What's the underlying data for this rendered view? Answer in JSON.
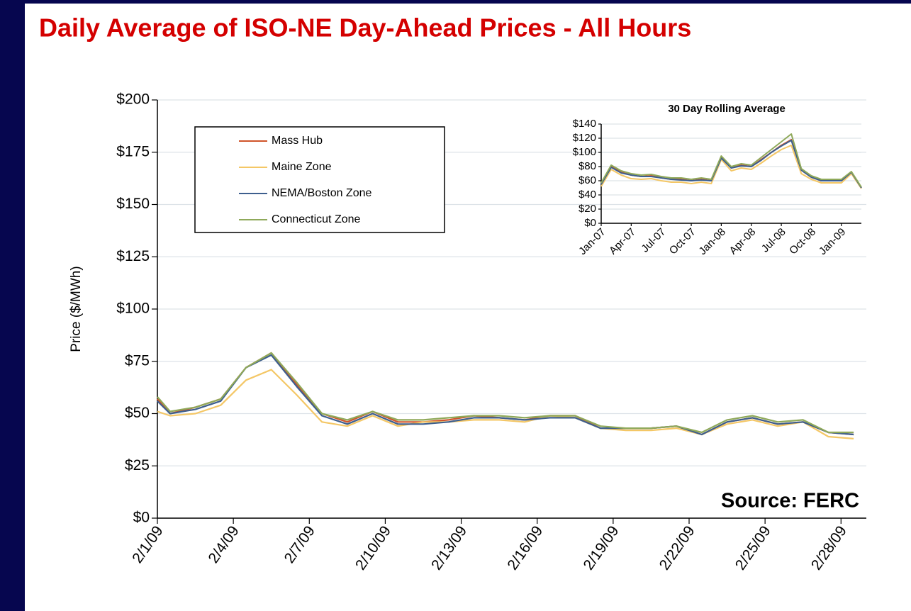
{
  "chart_data": [
    {
      "type": "line",
      "title": "Daily Average of ISO-NE Day-Ahead Prices - All Hours",
      "y_label": "Price ($/MWh)",
      "annotation": "Source: FERC",
      "x": [
        0,
        0.5,
        1.5,
        2.5,
        3.5,
        4.5,
        5.5,
        6.5,
        7.5,
        8.5,
        9.5,
        10.5,
        11.5,
        12.5,
        13.5,
        14.5,
        15.5,
        16.5,
        17.5,
        18.5,
        19.5,
        20.5,
        21.5,
        22.5,
        23.5,
        24.5,
        25.5,
        26.5,
        27.5
      ],
      "xlim": [
        0,
        28
      ],
      "xticks": [
        {
          "value": 0,
          "label": "2/1/09"
        },
        {
          "value": 3,
          "label": "2/4/09"
        },
        {
          "value": 6,
          "label": "2/7/09"
        },
        {
          "value": 9,
          "label": "2/10/09"
        },
        {
          "value": 12,
          "label": "2/13/09"
        },
        {
          "value": 15,
          "label": "2/16/09"
        },
        {
          "value": 18,
          "label": "2/19/09"
        },
        {
          "value": 21,
          "label": "2/22/09"
        },
        {
          "value": 24,
          "label": "2/25/09"
        },
        {
          "value": 27,
          "label": "2/28/09"
        }
      ],
      "ylim": [
        0,
        200
      ],
      "yticks": [
        {
          "value": 0,
          "label": "$0"
        },
        {
          "value": 25,
          "label": "$25"
        },
        {
          "value": 50,
          "label": "$50"
        },
        {
          "value": 75,
          "label": "$75"
        },
        {
          "value": 100,
          "label": "$100"
        },
        {
          "value": 125,
          "label": "$125"
        },
        {
          "value": 150,
          "label": "$150"
        },
        {
          "value": 175,
          "label": "$175"
        },
        {
          "value": 200,
          "label": "$200"
        }
      ],
      "grid": true,
      "legend": "top-left",
      "series": [
        {
          "name": "Mass Hub",
          "color": "#d0542a",
          "values": [
            57,
            50,
            53,
            57,
            72,
            79,
            64,
            50,
            46,
            51,
            46,
            46,
            47,
            49,
            48,
            47,
            49,
            49,
            43,
            43,
            43,
            44,
            40,
            46,
            48,
            45,
            46,
            41,
            40
          ]
        },
        {
          "name": "Maine Zone",
          "color": "#f4c766",
          "values": [
            51,
            49,
            50,
            54,
            66,
            71,
            59,
            46,
            44,
            49,
            44,
            46,
            46,
            47,
            47,
            46,
            49,
            48,
            43,
            42,
            42,
            43,
            40,
            45,
            47,
            44,
            46,
            39,
            38
          ]
        },
        {
          "name": "NEMA/Boston Zone",
          "color": "#3d5f8e",
          "values": [
            56,
            50,
            52,
            56,
            72,
            78,
            63,
            49,
            45,
            50,
            45,
            45,
            46,
            48,
            48,
            47,
            48,
            48,
            43,
            43,
            43,
            44,
            40,
            46,
            48,
            45,
            46,
            41,
            40
          ]
        },
        {
          "name": "Connecticut Zone",
          "color": "#8fa95a",
          "values": [
            58,
            51,
            53,
            57,
            72,
            79,
            65,
            50,
            47,
            51,
            47,
            47,
            48,
            49,
            49,
            48,
            49,
            49,
            44,
            43,
            43,
            44,
            41,
            47,
            49,
            46,
            47,
            41,
            41
          ]
        }
      ]
    },
    {
      "type": "line",
      "title": "30 Day Rolling Average",
      "x": [
        0,
        1,
        2,
        3,
        4,
        5,
        6,
        7,
        8,
        9,
        10,
        11,
        12,
        13,
        14,
        15,
        16,
        17,
        18,
        19,
        20,
        21,
        22,
        23,
        24,
        25,
        26
      ],
      "xlim": [
        0,
        26
      ],
      "xticks": [
        {
          "value": 0,
          "label": "Jan-07"
        },
        {
          "value": 3,
          "label": "Apr-07"
        },
        {
          "value": 6,
          "label": "Jul-07"
        },
        {
          "value": 9,
          "label": "Oct-07"
        },
        {
          "value": 12,
          "label": "Jan-08"
        },
        {
          "value": 15,
          "label": "Apr-08"
        },
        {
          "value": 18,
          "label": "Jul-08"
        },
        {
          "value": 21,
          "label": "Oct-08"
        },
        {
          "value": 24,
          "label": "Jan-09"
        }
      ],
      "ylim": [
        0,
        140
      ],
      "yticks": [
        {
          "value": 0,
          "label": "$0"
        },
        {
          "value": 20,
          "label": "$20"
        },
        {
          "value": 40,
          "label": "$40"
        },
        {
          "value": 60,
          "label": "$60"
        },
        {
          "value": 80,
          "label": "$80"
        },
        {
          "value": 100,
          "label": "$100"
        },
        {
          "value": 120,
          "label": "$120"
        },
        {
          "value": 140,
          "label": "$140"
        }
      ],
      "grid": true,
      "series": [
        {
          "name": "Mass Hub",
          "color": "#d0542a",
          "values": [
            55,
            80,
            72,
            68,
            66,
            67,
            64,
            62,
            62,
            60,
            62,
            60,
            93,
            78,
            82,
            80,
            90,
            100,
            110,
            118,
            75,
            65,
            60,
            60,
            60,
            72,
            50
          ]
        },
        {
          "name": "Maine Zone",
          "color": "#f4c766",
          "values": [
            52,
            76,
            68,
            63,
            62,
            63,
            60,
            58,
            58,
            56,
            58,
            56,
            90,
            74,
            78,
            76,
            85,
            95,
            104,
            110,
            70,
            62,
            57,
            57,
            57,
            70,
            49
          ]
        },
        {
          "name": "NEMA/Boston Zone",
          "color": "#3d5f8e",
          "values": [
            55,
            79,
            71,
            68,
            66,
            66,
            64,
            62,
            61,
            60,
            61,
            60,
            92,
            78,
            81,
            80,
            89,
            100,
            109,
            117,
            75,
            65,
            60,
            60,
            60,
            72,
            50
          ]
        },
        {
          "name": "Connecticut Zone",
          "color": "#8fa95a",
          "values": [
            57,
            82,
            74,
            70,
            68,
            69,
            66,
            64,
            64,
            62,
            64,
            62,
            95,
            80,
            84,
            82,
            93,
            104,
            115,
            126,
            77,
            67,
            62,
            62,
            62,
            73,
            51
          ]
        }
      ]
    }
  ]
}
